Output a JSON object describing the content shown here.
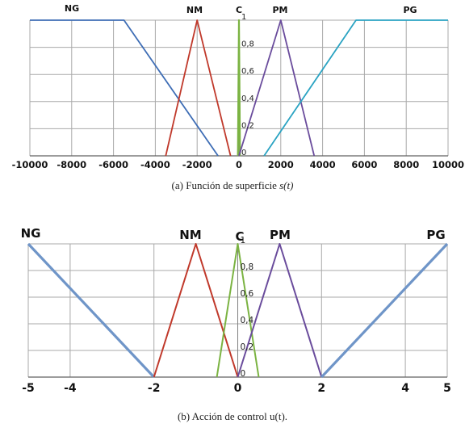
{
  "chart_data": [
    {
      "type": "line",
      "title": "",
      "caption_prefix": "(a)  Función de superficie ",
      "caption_var": "s(t)",
      "xlim": [
        -10000,
        10000
      ],
      "ylim": [
        0,
        1
      ],
      "x_ticks": [
        "-10000",
        "-8000",
        "-6000",
        "-4000",
        "-2000",
        "0",
        "2000",
        "4000",
        "6000",
        "8000",
        "10000"
      ],
      "y_ticks": [
        "0",
        "0,2",
        "0,4",
        "0,6",
        "0,8",
        "1"
      ],
      "grid": true,
      "series": [
        {
          "name": "NG",
          "color": "#3e6db5",
          "x": [
            -10000,
            -5500,
            -1000
          ],
          "y": [
            1,
            1,
            0
          ]
        },
        {
          "name": "NM",
          "color": "#c0392b",
          "x": [
            -3500,
            -2000,
            -400
          ],
          "y": [
            0,
            1,
            0
          ]
        },
        {
          "name": "C",
          "color": "#7bb342",
          "x": [
            -50,
            0,
            50
          ],
          "y": [
            0,
            1,
            0
          ]
        },
        {
          "name": "PM",
          "color": "#6a4c9c",
          "x": [
            0,
            2000,
            3600
          ],
          "y": [
            0,
            1,
            0
          ]
        },
        {
          "name": "PG",
          "color": "#2aa3c2",
          "x": [
            1200,
            5600,
            10000
          ],
          "y": [
            0,
            1,
            1
          ]
        }
      ]
    },
    {
      "type": "line",
      "title": "",
      "caption_prefix": "(b)  Acción de control u(t).",
      "caption_var": "",
      "xlim": [
        -5,
        5
      ],
      "ylim": [
        0,
        1
      ],
      "x_ticks": [
        "-5",
        "-4",
        "-2",
        "0",
        "2",
        "4",
        "5"
      ],
      "y_ticks": [
        "0",
        "0,2",
        "0,4",
        "0,6",
        "0,8",
        "1"
      ],
      "grid": true,
      "series": [
        {
          "name": "NG",
          "color": "#6f95c8",
          "x": [
            -5,
            -2
          ],
          "y": [
            1,
            0
          ]
        },
        {
          "name": "NM",
          "color": "#c0392b",
          "x": [
            -2,
            -1,
            0
          ],
          "y": [
            0,
            1,
            0
          ]
        },
        {
          "name": "C",
          "color": "#7bb342",
          "x": [
            -0.5,
            0,
            0.5
          ],
          "y": [
            0,
            1,
            0
          ]
        },
        {
          "name": "PM",
          "color": "#6a4c9c",
          "x": [
            0,
            1,
            2
          ],
          "y": [
            0,
            1,
            0
          ]
        },
        {
          "name": "PG",
          "color": "#6f95c8",
          "x": [
            2,
            5
          ],
          "y": [
            0,
            1
          ]
        }
      ]
    }
  ]
}
